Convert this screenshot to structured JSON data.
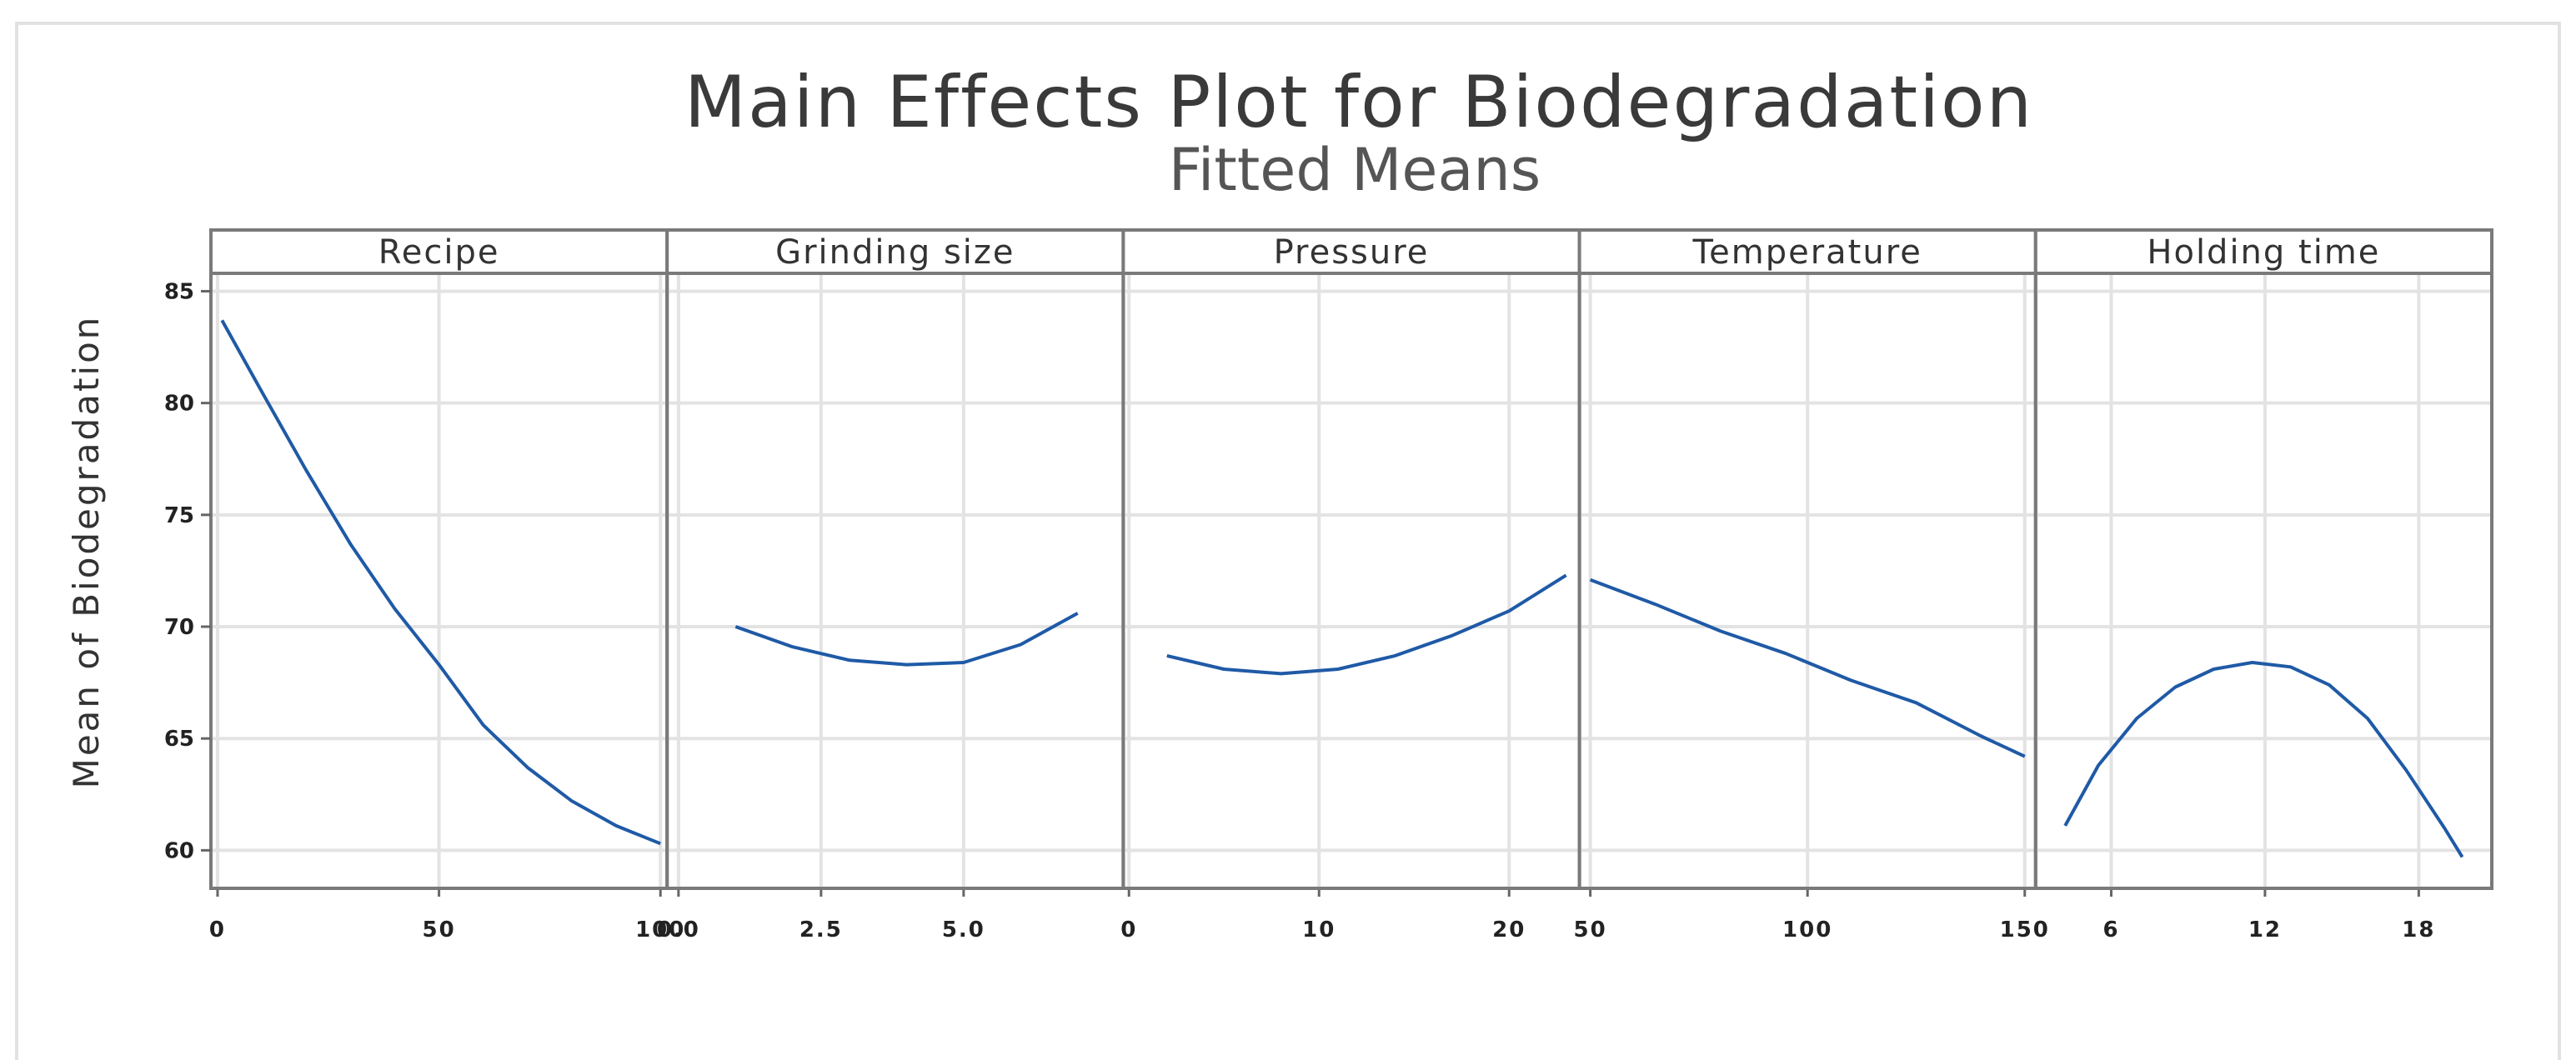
{
  "chart_data": {
    "type": "line",
    "title": "Main Effects Plot for Biodegradation",
    "subtitle": "Fitted Means",
    "ylabel": "Mean of Biodegradation",
    "ylim": [
      58.3,
      85.8
    ],
    "yticks": [
      60,
      65,
      70,
      75,
      80,
      85
    ],
    "ytick_labels": [
      "60",
      "65",
      "70",
      "75",
      "80",
      "85"
    ],
    "grid": true,
    "line_color": "#1f5aa6",
    "panels": [
      {
        "name": "Recipe",
        "xlim": [
          -1.5,
          101.5
        ],
        "xticks": [
          0,
          50,
          100
        ],
        "xtick_labels": [
          "0",
          "50",
          "100"
        ],
        "x": [
          1,
          10,
          20,
          30,
          40,
          50,
          60,
          70,
          80,
          90,
          100
        ],
        "y": [
          83.7,
          80.5,
          77.0,
          73.7,
          70.8,
          68.3,
          65.6,
          63.7,
          62.2,
          61.1,
          60.3
        ]
      },
      {
        "name": "Grinding size",
        "xlim": [
          -0.2,
          7.8
        ],
        "xticks": [
          0.0,
          2.5,
          5.0
        ],
        "xtick_labels": [
          "0.0",
          "2.5",
          "5.0"
        ],
        "x": [
          1.0,
          2.0,
          3.0,
          4.0,
          5.0,
          6.0,
          7.0
        ],
        "y": [
          70.0,
          69.1,
          68.5,
          68.3,
          68.4,
          69.2,
          70.6
        ]
      },
      {
        "name": "Pressure",
        "xlim": [
          -0.3,
          23.7
        ],
        "xticks": [
          0,
          10,
          20
        ],
        "xtick_labels": [
          "0",
          "10",
          "20"
        ],
        "x": [
          2,
          5,
          8,
          11,
          14,
          17,
          20,
          23
        ],
        "y": [
          68.7,
          68.1,
          67.9,
          68.1,
          68.7,
          69.6,
          70.7,
          72.3
        ]
      },
      {
        "name": "Temperature",
        "xlim": [
          47.5,
          152.5
        ],
        "xticks": [
          50,
          100,
          150
        ],
        "xtick_labels": [
          "50",
          "100",
          "150"
        ],
        "x": [
          50,
          65,
          80,
          95,
          110,
          125,
          140,
          150
        ],
        "y": [
          72.1,
          71.0,
          69.8,
          68.8,
          67.6,
          66.6,
          65.1,
          64.2
        ]
      },
      {
        "name": "Holding time",
        "xlim": [
          3.05,
          20.85
        ],
        "xticks": [
          6,
          12,
          18
        ],
        "xtick_labels": [
          "6",
          "12",
          "18"
        ],
        "x": [
          4.2,
          5.5,
          7.0,
          8.5,
          10.0,
          11.5,
          13.0,
          14.5,
          16.0,
          17.5,
          19.0,
          19.7
        ],
        "y": [
          61.1,
          63.8,
          65.9,
          67.3,
          68.1,
          68.4,
          68.2,
          67.4,
          65.9,
          63.6,
          61.0,
          59.7
        ]
      }
    ]
  }
}
